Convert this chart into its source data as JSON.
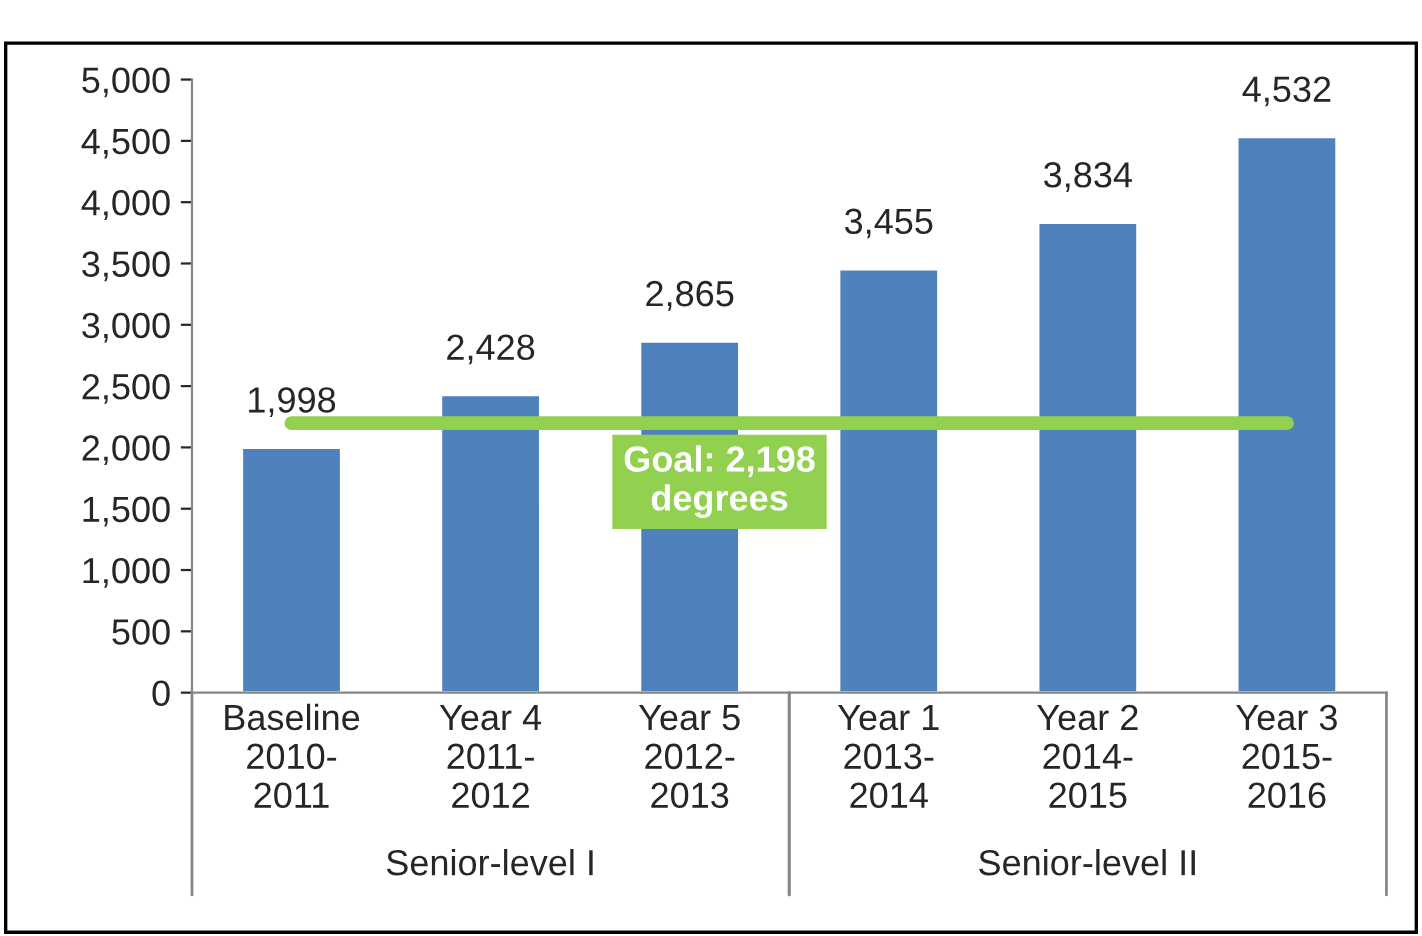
{
  "chart_data": {
    "type": "bar",
    "categories": [
      "Baseline\n2010-\n2011",
      "Year 4\n2011-\n2012",
      "Year 5\n2012-\n2013",
      "Year 1\n2013-\n2014",
      "Year 2\n2014-\n2015",
      "Year 3\n2015-\n2016"
    ],
    "values": [
      1998,
      2428,
      2865,
      3455,
      3834,
      4532
    ],
    "color": "#4f81bd",
    "value_labels": [
      "1,998",
      "2,428",
      "2,865",
      "3,455",
      "3,834",
      "4,532"
    ],
    "ylim": [
      0,
      5000
    ],
    "yticks": [
      0,
      500,
      {
        "value": 1000,
        "label": "1,000"
      },
      {
        "value": 1500,
        "label": "1,500"
      },
      {
        "value": 2000,
        "label": "2,000"
      },
      {
        "value": 2500,
        "label": "2,500"
      },
      {
        "value": 3000,
        "label": "3,000"
      },
      {
        "value": 3500,
        "label": "3,500"
      },
      {
        "value": 4000,
        "label": "4,000"
      },
      {
        "value": 4500,
        "label": "4,500"
      },
      {
        "value": 5000,
        "label": "5,000"
      }
    ],
    "ref_lines": [
      {
        "axis": "y",
        "value": 2198,
        "label": "Goal: 2,198\ndegrees",
        "color": "#92d050"
      }
    ],
    "annotations": [
      "Senior-level I",
      "Senior-level II"
    ],
    "grid": false
  }
}
